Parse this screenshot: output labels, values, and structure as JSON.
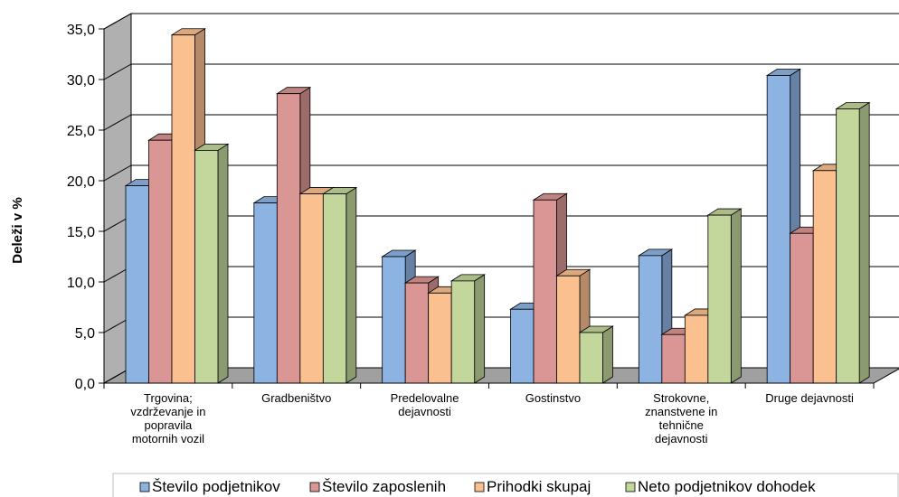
{
  "chart_data": {
    "type": "bar",
    "ylabel": "Deleži v %",
    "ylim": [
      0,
      35
    ],
    "yticks": [
      "0,0",
      "5,0",
      "10,0",
      "15,0",
      "20,0",
      "25,0",
      "30,0",
      "35,0"
    ],
    "grid": true,
    "legend_position": "bottom",
    "categories": [
      [
        "Trgovina;",
        "vzdrževanje in",
        "popravila",
        "motornih vozil"
      ],
      [
        "Gradbeništvo"
      ],
      [
        "Predelovalne",
        "dejavnosti"
      ],
      [
        "Gostinstvo"
      ],
      [
        "Strokovne,",
        "znanstvene in",
        "tehnične",
        "dejavnosti"
      ],
      [
        "Druge dejavnosti"
      ]
    ],
    "series": [
      {
        "name": "Število podjetnikov",
        "color": "#8DB3E2",
        "values": [
          19.5,
          17.8,
          12.5,
          7.3,
          12.6,
          30.4
        ]
      },
      {
        "name": "Število zaposlenih",
        "color": "#D99694",
        "values": [
          24.0,
          28.6,
          9.9,
          18.1,
          4.8,
          14.8
        ]
      },
      {
        "name": "Prihodki skupaj",
        "color": "#FAC090",
        "values": [
          34.4,
          18.7,
          8.9,
          10.6,
          6.7,
          21.0
        ]
      },
      {
        "name": "Neto podjetnikov dohodek",
        "color": "#C3D69B",
        "values": [
          23.0,
          18.7,
          10.1,
          5.0,
          16.6,
          27.1
        ]
      }
    ]
  }
}
